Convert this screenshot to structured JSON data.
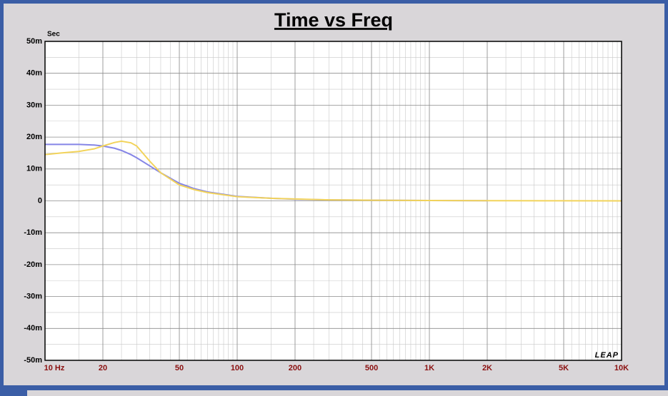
{
  "chart_data": {
    "type": "line",
    "title": "Time vs Freq",
    "y_label": "Sec",
    "logo": "LEAP",
    "x": [
      10,
      12,
      15,
      18,
      20,
      23,
      25,
      28,
      30,
      35,
      40,
      50,
      60,
      70,
      100,
      150,
      200,
      300,
      500,
      1000,
      2000,
      5000,
      10000
    ],
    "series": [
      {
        "name": "Blue",
        "color": "#8585e6",
        "values": [
          0.0177,
          0.0177,
          0.0177,
          0.0175,
          0.0172,
          0.0165,
          0.0158,
          0.0145,
          0.0135,
          0.011,
          0.0088,
          0.0055,
          0.0038,
          0.0028,
          0.0014,
          0.0008,
          0.0005,
          0.0003,
          0.0002,
          0.0001,
          5e-05,
          null,
          null
        ]
      },
      {
        "name": "Yellow",
        "color": "#f2d35a",
        "values": [
          0.0145,
          0.015,
          0.0155,
          0.0163,
          0.0172,
          0.0183,
          0.0187,
          0.0182,
          0.0172,
          0.0125,
          0.0088,
          0.005,
          0.0035,
          0.0026,
          0.0013,
          0.0008,
          0.0006,
          0.0003,
          0.0002,
          0.0001,
          5e-05,
          2e-05,
          1e-05
        ]
      }
    ],
    "xlog": true,
    "xlim": [
      10,
      10000
    ],
    "xticks": [
      {
        "value": 10,
        "label": "10 Hz"
      },
      20,
      50,
      100,
      200,
      500,
      {
        "value": 1000,
        "label": "1K"
      },
      {
        "value": 2000,
        "label": "2K"
      },
      {
        "value": 5000,
        "label": "5K"
      },
      {
        "value": 10000,
        "label": "10K"
      }
    ],
    "ylim": [
      -0.05,
      0.05
    ],
    "yticks": [
      {
        "value": -0.05,
        "label": "-50m"
      },
      {
        "value": -0.04,
        "label": "-40m"
      },
      {
        "value": -0.03,
        "label": "-30m"
      },
      {
        "value": -0.02,
        "label": "-20m"
      },
      {
        "value": -0.01,
        "label": "-10m"
      },
      0,
      {
        "value": 0.01,
        "label": "10m"
      },
      {
        "value": 0.02,
        "label": "20m"
      },
      {
        "value": 0.03,
        "label": "30m"
      },
      {
        "value": 0.04,
        "label": "40m"
      },
      {
        "value": 0.05,
        "label": "50m"
      }
    ],
    "grid": true
  }
}
